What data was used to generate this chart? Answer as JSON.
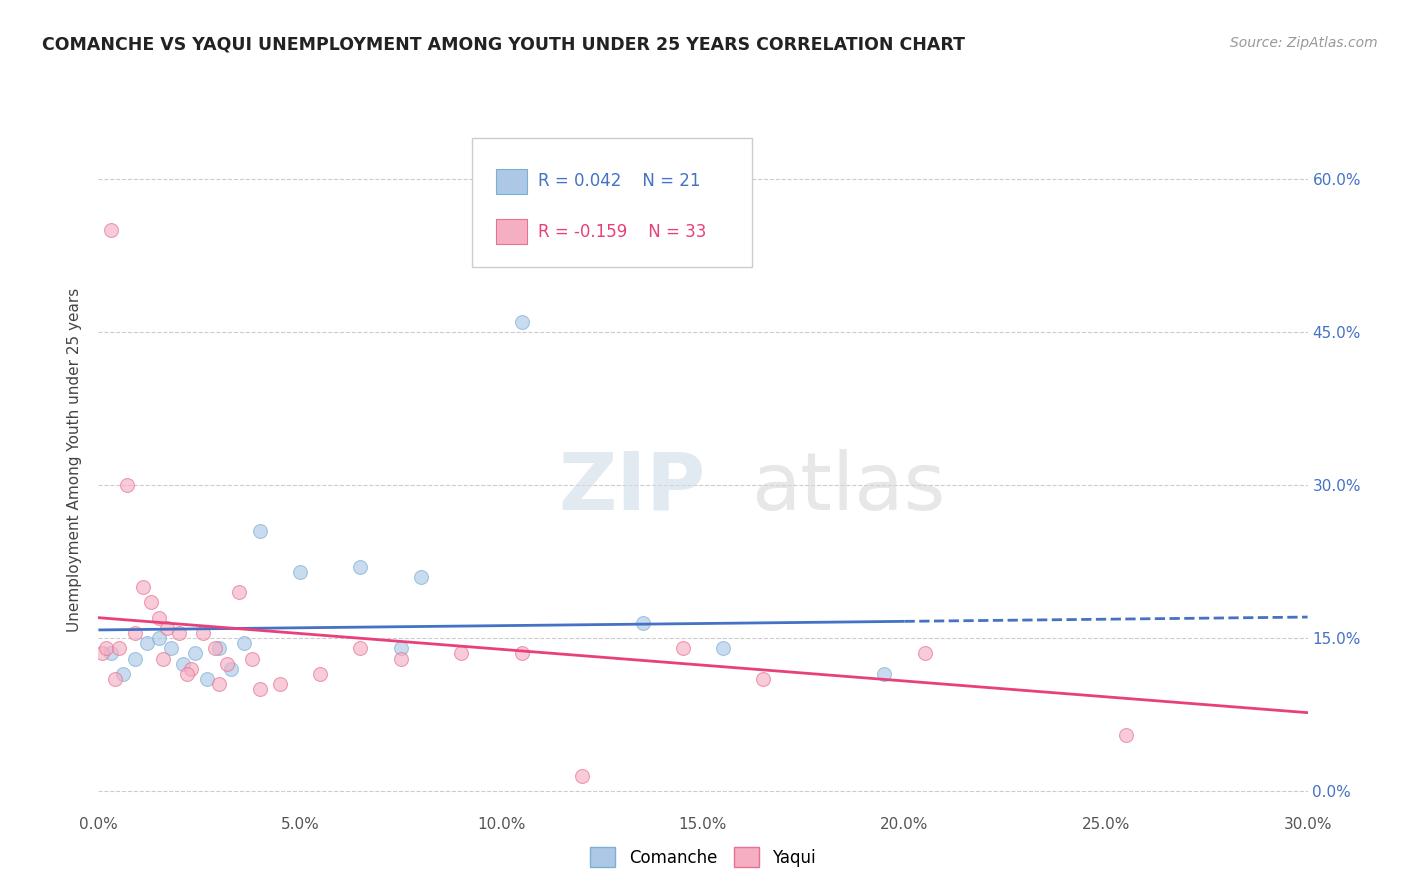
{
  "title": "COMANCHE VS YAQUI UNEMPLOYMENT AMONG YOUTH UNDER 25 YEARS CORRELATION CHART",
  "source": "Source: ZipAtlas.com",
  "xlabel_vals": [
    0.0,
    5.0,
    10.0,
    15.0,
    20.0,
    25.0,
    30.0
  ],
  "ylabel_vals": [
    0.0,
    15.0,
    30.0,
    45.0,
    60.0
  ],
  "xlim": [
    0.0,
    30.0
  ],
  "ylim": [
    -2.0,
    67.0
  ],
  "comanche_color": "#adc8e6",
  "yaqui_color": "#f4afc3",
  "comanche_edge": "#7bafd4",
  "yaqui_edge": "#e87090",
  "trend_comanche_color": "#4472c4",
  "trend_yaqui_color": "#e8407a",
  "legend_R_comanche": "R = 0.042",
  "legend_N_comanche": "N = 21",
  "legend_R_yaqui": "R = -0.159",
  "legend_N_yaqui": "N = 33",
  "comanche_x": [
    0.3,
    0.6,
    0.9,
    1.2,
    1.5,
    1.8,
    2.1,
    2.4,
    2.7,
    3.0,
    3.3,
    3.6,
    4.0,
    5.0,
    6.5,
    8.0,
    10.5,
    13.5,
    15.5,
    19.5,
    7.5
  ],
  "comanche_y": [
    13.5,
    11.5,
    13.0,
    14.5,
    15.0,
    14.0,
    12.5,
    13.5,
    11.0,
    14.0,
    12.0,
    14.5,
    25.5,
    21.5,
    22.0,
    21.0,
    46.0,
    16.5,
    14.0,
    11.5,
    14.0
  ],
  "yaqui_x": [
    0.1,
    0.2,
    0.3,
    0.5,
    0.7,
    0.9,
    1.1,
    1.3,
    1.5,
    1.7,
    2.0,
    2.3,
    2.6,
    2.9,
    3.2,
    3.5,
    3.8,
    4.5,
    5.5,
    6.5,
    7.5,
    9.0,
    10.5,
    12.0,
    14.5,
    16.5,
    20.5,
    25.5,
    0.4,
    1.6,
    2.2,
    3.0,
    4.0
  ],
  "yaqui_y": [
    13.5,
    14.0,
    55.0,
    14.0,
    30.0,
    15.5,
    20.0,
    18.5,
    17.0,
    16.0,
    15.5,
    12.0,
    15.5,
    14.0,
    12.5,
    19.5,
    13.0,
    10.5,
    11.5,
    14.0,
    13.0,
    13.5,
    13.5,
    1.5,
    14.0,
    11.0,
    13.5,
    5.5,
    11.0,
    13.0,
    11.5,
    10.5,
    10.0
  ],
  "marker_size": 100,
  "marker_alpha": 0.65,
  "dash_start_x": 20.0,
  "trend_x_start": 0.0,
  "trend_x_end": 30.0,
  "comanche_trend_m": 0.042,
  "comanche_trend_b": 15.8,
  "yaqui_trend_m": -0.31,
  "yaqui_trend_b": 17.0
}
